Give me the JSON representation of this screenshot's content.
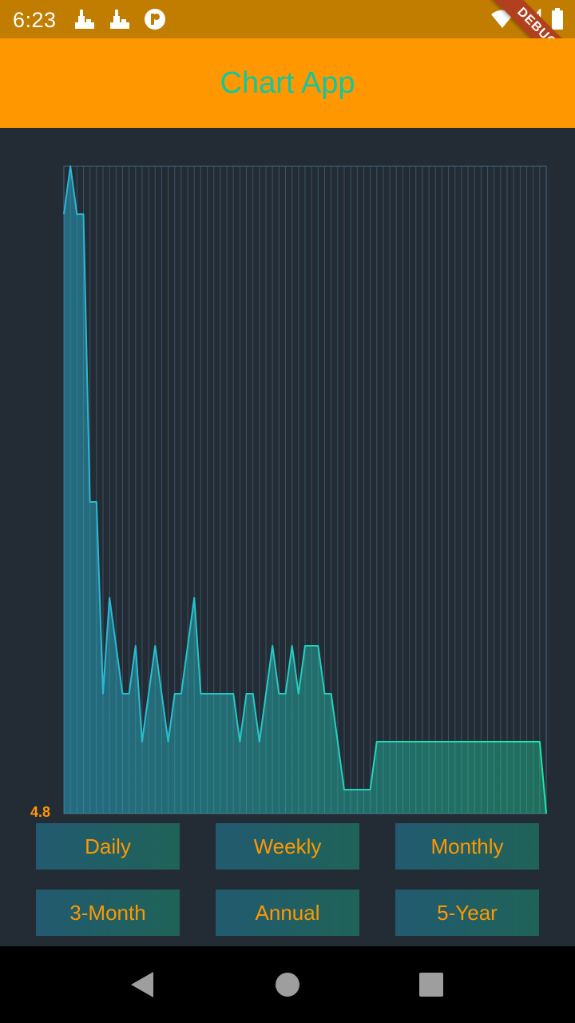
{
  "status_bar": {
    "time": "6:23",
    "left_icons": [
      "notification-icon",
      "notification-icon",
      "circle-p-icon"
    ],
    "right_icons": [
      "wifi-icon",
      "signal-icon",
      "battery-icon"
    ],
    "debug_label": "DEBUG"
  },
  "app_bar": {
    "title": "Chart App",
    "background": "#ff9800",
    "title_color": "#13c6a0"
  },
  "chart_data": {
    "type": "area",
    "title": "",
    "xlabel": "",
    "ylabel": "",
    "y_min_label": "4.8",
    "grid": true,
    "colors": {
      "line_start": "#29b6d9",
      "line_end": "#1de9a6",
      "grid": "#3a5566",
      "label": "#ff9800"
    },
    "series": [
      {
        "values": [
          17.3,
          18.3,
          17.3,
          17.3,
          11.3,
          11.3,
          7.3,
          9.3,
          8.3,
          7.3,
          7.3,
          8.3,
          6.3,
          7.3,
          8.3,
          7.3,
          6.3,
          7.3,
          7.3,
          8.3,
          9.3,
          7.3,
          7.3,
          7.3,
          7.3,
          7.3,
          7.3,
          6.3,
          7.3,
          7.3,
          6.3,
          7.3,
          8.3,
          7.3,
          7.3,
          8.3,
          7.3,
          8.3,
          8.3,
          8.3,
          7.3,
          7.3,
          6.3,
          5.3,
          5.3,
          5.3,
          5.3,
          5.3,
          6.3,
          6.3,
          6.3,
          6.3,
          6.3,
          6.3,
          6.3,
          6.3,
          6.3,
          6.3,
          6.3,
          6.3,
          6.3,
          6.3,
          6.3,
          6.3,
          6.3,
          6.3,
          6.3,
          6.3,
          6.3,
          6.3,
          6.3,
          6.3,
          6.3,
          6.3,
          4.8
        ],
        "note": ""
      }
    ]
  },
  "buttons": [
    {
      "id": "daily",
      "label": "Daily"
    },
    {
      "id": "weekly",
      "label": "Weekly"
    },
    {
      "id": "monthly",
      "label": "Monthly"
    },
    {
      "id": "3-month",
      "label": "3-Month"
    },
    {
      "id": "annual",
      "label": "Annual"
    },
    {
      "id": "5-year",
      "label": "5-Year"
    }
  ],
  "nav_bar": {
    "icons": [
      "back-icon",
      "home-icon",
      "recents-icon"
    ]
  }
}
